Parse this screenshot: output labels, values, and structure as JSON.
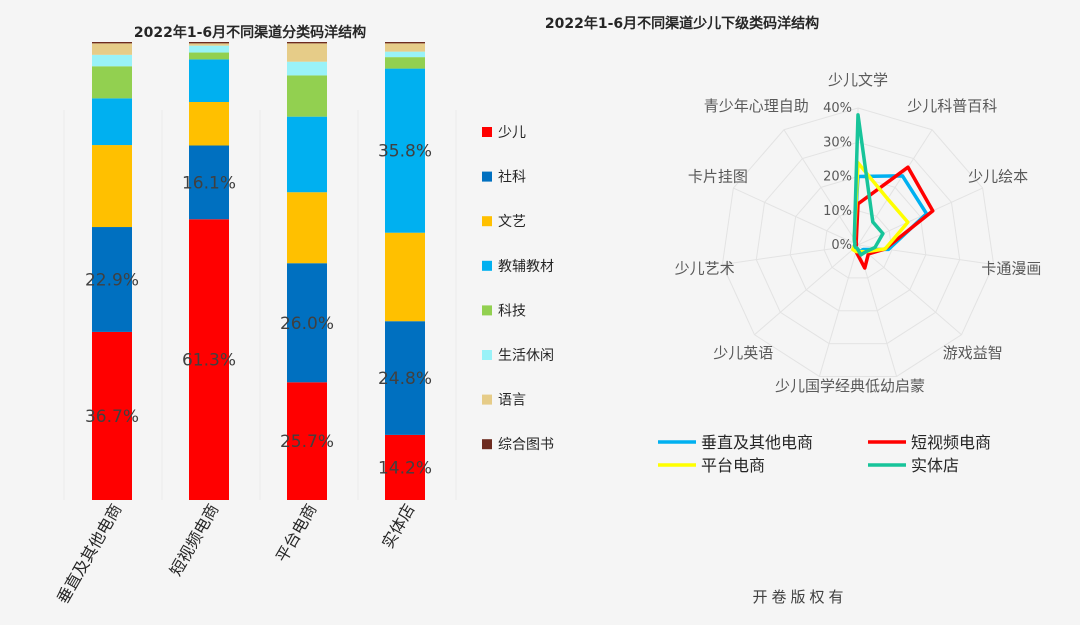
{
  "copyright": "开卷版权有",
  "colors": {
    "少儿": "#ff0000",
    "社科": "#0070c0",
    "文艺": "#ffc000",
    "教辅教材": "#00b0f0",
    "科技": "#92d050",
    "生活休闲": "#99f2f8",
    "语言": "#e6cc88",
    "综合图书": "#6d2b1f",
    "垂直及其他电商": "#00b0f0",
    "短视频电商": "#ff0000",
    "平台电商": "#ffff00",
    "实体店": "#17c49a"
  },
  "chart_data": [
    {
      "type": "bar",
      "stacked": true,
      "title": "2022年1-6月不同渠道分类码洋结构",
      "categories": [
        "垂直及其他电商",
        "短视频电商",
        "平台电商",
        "实体店"
      ],
      "ylim": [
        0,
        100
      ],
      "series": [
        {
          "name": "少儿",
          "values": [
            36.7,
            61.3,
            25.7,
            14.2
          ],
          "labels": [
            "36.7%",
            "61.3%",
            "25.7%",
            "14.2%"
          ]
        },
        {
          "name": "社科",
          "values": [
            22.9,
            16.1,
            26.0,
            24.8
          ],
          "labels": [
            "22.9%",
            "16.1%",
            "26.0%",
            "24.8%"
          ]
        },
        {
          "name": "文艺",
          "values": [
            17.9,
            9.5,
            15.5,
            19.3
          ],
          "labels": [
            "",
            "",
            "",
            ""
          ]
        },
        {
          "name": "教辅教材",
          "values": [
            10.2,
            9.3,
            16.5,
            35.8
          ],
          "labels": [
            "",
            "",
            "",
            "35.8%"
          ]
        },
        {
          "name": "科技",
          "values": [
            7.0,
            1.5,
            9.0,
            2.5
          ],
          "labels": [
            "",
            "",
            "",
            ""
          ]
        },
        {
          "name": "生活休闲",
          "values": [
            2.5,
            1.5,
            3.0,
            1.2
          ],
          "labels": [
            "",
            "",
            "",
            ""
          ]
        },
        {
          "name": "语言",
          "values": [
            2.5,
            0.5,
            4.0,
            1.8
          ],
          "labels": [
            "",
            "",
            "",
            ""
          ]
        },
        {
          "name": "综合图书",
          "values": [
            0.3,
            0.3,
            0.3,
            0.3
          ],
          "labels": [
            "",
            "",
            "",
            ""
          ]
        }
      ],
      "legend_position": "right"
    },
    {
      "type": "radar",
      "title": "2022年1-6月不同渠道少儿下级类码洋结构",
      "axes": [
        "少儿文学",
        "少儿科普百科",
        "少儿绘本",
        "卡通漫画",
        "游戏益智",
        "少儿低幼启蒙",
        "少儿国学经典",
        "少儿英语",
        "少儿艺术",
        "卡片挂图",
        "青少年心理自助"
      ],
      "axis_display": [
        "少儿文学",
        "少儿科普百科",
        "少儿绘本",
        "卡通漫画",
        "游戏益智",
        "",
        "",
        "少儿英语",
        "少儿艺术",
        "卡片挂图",
        "青少年心理自助"
      ],
      "bottom_label": "少儿国学经典低幼启蒙",
      "ticks": [
        0,
        10,
        20,
        30,
        40
      ],
      "tick_labels": [
        "0%",
        "10%",
        "20%",
        "30%",
        "40%"
      ],
      "rmax": 40,
      "series": [
        {
          "name": "垂直及其他电商",
          "values": [
            20,
            24,
            22,
            9,
            2,
            2,
            1,
            1,
            1,
            1,
            2
          ]
        },
        {
          "name": "短视频电商",
          "values": [
            12,
            27,
            24,
            8,
            4,
            7,
            2,
            1,
            0.5,
            0.5,
            1
          ]
        },
        {
          "name": "平台电商",
          "values": [
            24,
            16,
            16,
            8,
            3,
            2,
            2,
            2,
            1,
            1,
            2
          ]
        },
        {
          "name": "实体店",
          "values": [
            38,
            8,
            8,
            5,
            3,
            3,
            1,
            1,
            1,
            1,
            2
          ]
        }
      ],
      "legend_position": "bottom"
    }
  ]
}
